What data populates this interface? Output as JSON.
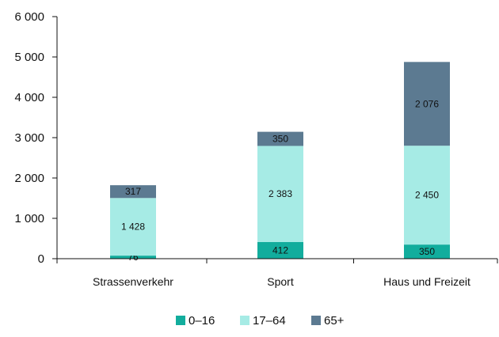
{
  "chart_data": {
    "type": "bar",
    "stacked": true,
    "categories": [
      "Strassenverkehr",
      "Sport",
      "Haus und Freizeit"
    ],
    "series": [
      {
        "name": "0–16",
        "values": [
          76,
          412,
          350
        ],
        "color": "#12ad9d",
        "labels": [
          "76",
          "412",
          "350"
        ]
      },
      {
        "name": "17–64",
        "values": [
          1428,
          2383,
          2450
        ],
        "color": "#a6ebe5",
        "labels": [
          "1 428",
          "2 383",
          "2 450"
        ]
      },
      {
        "name": "65+",
        "values": [
          317,
          350,
          2076
        ],
        "color": "#5c7a91",
        "labels": [
          "317",
          "350",
          "2 076"
        ]
      }
    ],
    "ylim": [
      0,
      6000
    ],
    "yticks": [
      0,
      1000,
      2000,
      3000,
      4000,
      5000,
      6000
    ],
    "ytick_labels": [
      "0",
      "1 000",
      "2 000",
      "3 000",
      "4 000",
      "5 000",
      "6 000"
    ],
    "title": "",
    "xlabel": "",
    "ylabel": "",
    "grid": false,
    "legend_position": "bottom-center"
  }
}
